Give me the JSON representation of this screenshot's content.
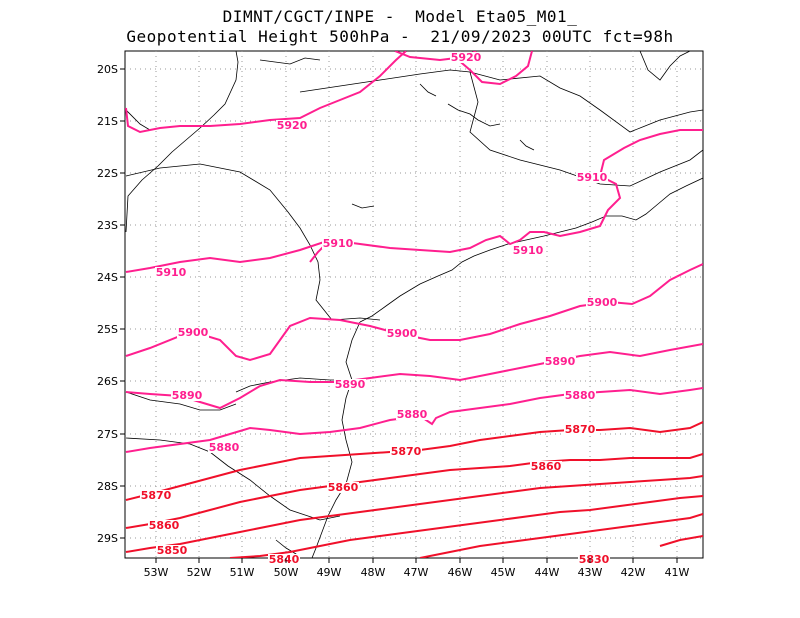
{
  "title": {
    "line1": "DIMNT/CGCT/INPE -  Model Eta05_M01_",
    "line2": "Geopotential Height 500hPa -  21/09/2023 00UTC fct=98h"
  },
  "axes": {
    "lon_labels": [
      "53W",
      "52W",
      "51W",
      "50W",
      "49W",
      "48W",
      "47W",
      "46W",
      "45W",
      "44W",
      "43W",
      "42W",
      "41W"
    ],
    "lat_labels": [
      "20S",
      "21S",
      "22S",
      "23S",
      "24S",
      "25S",
      "26S",
      "27S",
      "28S",
      "29S"
    ]
  },
  "contour_labels": [
    "5920",
    "5920",
    "5910",
    "5910",
    "5910",
    "5910",
    "5900",
    "5900",
    "5900",
    "5890",
    "5890",
    "5890",
    "5880",
    "5880",
    "5880",
    "5870",
    "5870",
    "5870",
    "5860",
    "5860",
    "5860",
    "5850",
    "5840",
    "5830"
  ],
  "colors": {
    "contour_high": "#ff1f8f",
    "contour_low": "#f0102a",
    "coast": "#000000",
    "grid": "#9a9a9a"
  }
}
